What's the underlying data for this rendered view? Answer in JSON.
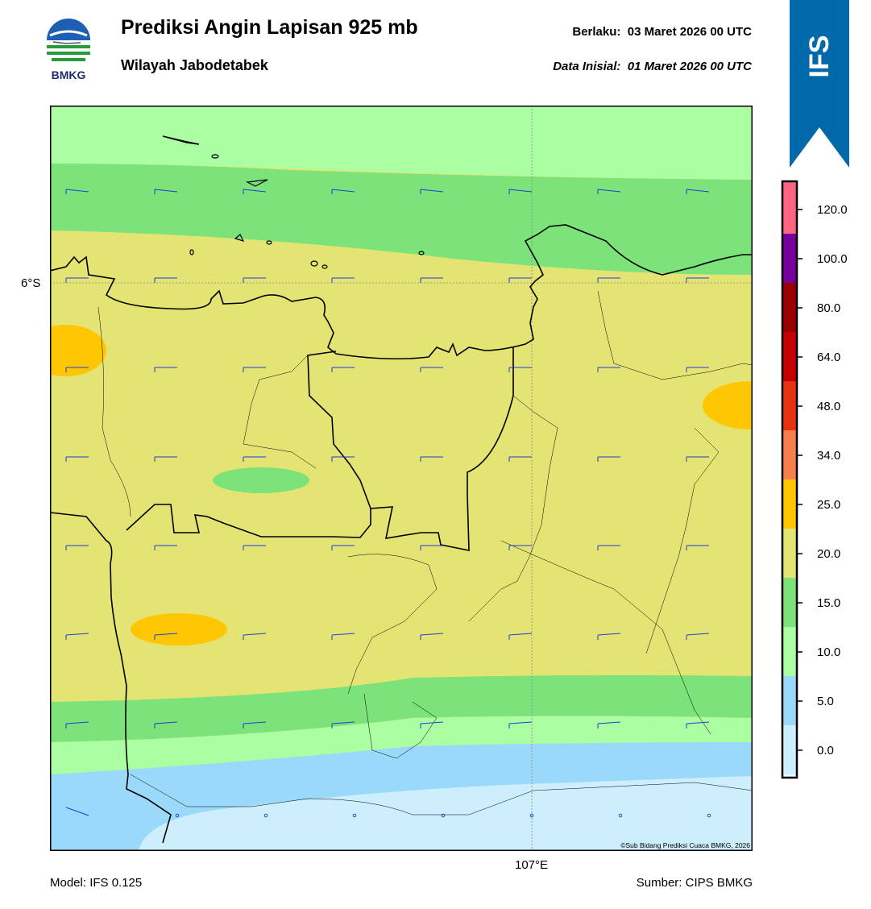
{
  "header": {
    "title": "Prediksi Angin Lapisan 925 mb",
    "subtitle": "Wilayah Jabodetabek",
    "valid_label": "Berlaku:",
    "valid_value": "03 Maret 2026 00 UTC",
    "init_label": "Data Inisial:",
    "init_value": "01 Maret 2026 00 UTC"
  },
  "logo": {
    "text": "BMKG",
    "icon": "bmkg-logo"
  },
  "ribbon": {
    "text": "IFS",
    "color": "#0069aa"
  },
  "map": {
    "lat_label": "6°S",
    "lon_label": "107°E",
    "copyright": "©Sub Bidang Prediksi Cuaca BMKG, 2026",
    "barb_color": "#1f3cd6",
    "land_line_color": "#000000"
  },
  "colorbar": {
    "ticks": [
      "0.0",
      "5.0",
      "10.0",
      "15.0",
      "20.0",
      "25.0",
      "34.0",
      "48.0",
      "64.0",
      "80.0",
      "100.0",
      "120.0"
    ],
    "colors": [
      "#eef8ff",
      "#cdeefc",
      "#9bd9fb",
      "#acfea2",
      "#7ce27a",
      "#e4e474",
      "#fec701",
      "#f87d4f",
      "#e73212",
      "#c60000",
      "#9b0000",
      "#74009e",
      "#fd6581"
    ]
  },
  "footer": {
    "model": "Model: IFS 0.125",
    "source": "Sumber: CIPS BMKG"
  }
}
